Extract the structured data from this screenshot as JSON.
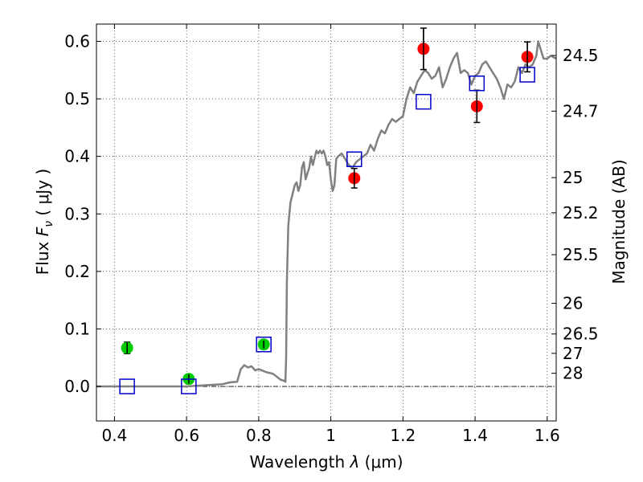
{
  "chart_data": {
    "type": "scatter",
    "xlabel": {
      "prefix": "Wavelength ",
      "symbol": "λ",
      "unit": " (μm)"
    },
    "ylabel": {
      "prefix": "Flux ",
      "symbol": "F",
      "subscript": "ν",
      "unit": " ( μJy )"
    },
    "y2label": "Magnitude (AB)",
    "xlim": [
      0.35,
      1.625
    ],
    "ylim": [
      -0.06,
      0.63
    ],
    "xticks": [
      {
        "value": 0.4,
        "label": "0.4"
      },
      {
        "value": 0.6,
        "label": "0.6"
      },
      {
        "value": 0.8,
        "label": "0.8"
      },
      {
        "value": 1.0,
        "label": "1"
      },
      {
        "value": 1.2,
        "label": "1.2"
      },
      {
        "value": 1.4,
        "label": "1.4"
      },
      {
        "value": 1.6,
        "label": "1.6"
      }
    ],
    "yticks": [
      {
        "value": 0.0,
        "label": "0.0"
      },
      {
        "value": 0.1,
        "label": "0.1"
      },
      {
        "value": 0.2,
        "label": "0.2"
      },
      {
        "value": 0.3,
        "label": "0.3"
      },
      {
        "value": 0.4,
        "label": "0.4"
      },
      {
        "value": 0.5,
        "label": "0.5"
      },
      {
        "value": 0.6,
        "label": "0.6"
      }
    ],
    "y2ticks": [
      {
        "mag": 24.5,
        "label": "24.5"
      },
      {
        "mag": 24.7,
        "label": "24.7"
      },
      {
        "mag": 25,
        "label": "25"
      },
      {
        "mag": 25.2,
        "label": "25.2"
      },
      {
        "mag": 25.5,
        "label": "25.5"
      },
      {
        "mag": 26,
        "label": "26"
      },
      {
        "mag": 26.5,
        "label": "26.5"
      },
      {
        "mag": 27,
        "label": "27"
      },
      {
        "mag": 28,
        "label": "28"
      }
    ],
    "grid": true,
    "series": [
      {
        "kind": "line",
        "color": "#808080",
        "points": [
          [
            0.35,
            0.0
          ],
          [
            0.5,
            0.0
          ],
          [
            0.6,
            0.0
          ],
          [
            0.65,
            0.002
          ],
          [
            0.7,
            0.004
          ],
          [
            0.72,
            0.007
          ],
          [
            0.74,
            0.008
          ],
          [
            0.75,
            0.03
          ],
          [
            0.76,
            0.037
          ],
          [
            0.77,
            0.033
          ],
          [
            0.78,
            0.035
          ],
          [
            0.79,
            0.028
          ],
          [
            0.8,
            0.03
          ],
          [
            0.82,
            0.025
          ],
          [
            0.84,
            0.022
          ],
          [
            0.86,
            0.012
          ],
          [
            0.87,
            0.01
          ],
          [
            0.874,
            0.008
          ],
          [
            0.876,
            0.05
          ],
          [
            0.878,
            0.18
          ],
          [
            0.882,
            0.28
          ],
          [
            0.888,
            0.32
          ],
          [
            0.892,
            0.33
          ],
          [
            0.9,
            0.35
          ],
          [
            0.905,
            0.355
          ],
          [
            0.91,
            0.34
          ],
          [
            0.915,
            0.35
          ],
          [
            0.92,
            0.38
          ],
          [
            0.925,
            0.39
          ],
          [
            0.93,
            0.36
          ],
          [
            0.935,
            0.37
          ],
          [
            0.94,
            0.38
          ],
          [
            0.945,
            0.4
          ],
          [
            0.95,
            0.385
          ],
          [
            0.96,
            0.41
          ],
          [
            0.965,
            0.405
          ],
          [
            0.97,
            0.41
          ],
          [
            0.975,
            0.405
          ],
          [
            0.98,
            0.41
          ],
          [
            0.985,
            0.4
          ],
          [
            0.99,
            0.385
          ],
          [
            0.995,
            0.39
          ],
          [
            1.0,
            0.36
          ],
          [
            1.005,
            0.34
          ],
          [
            1.01,
            0.35
          ],
          [
            1.015,
            0.395
          ],
          [
            1.02,
            0.4
          ],
          [
            1.03,
            0.405
          ],
          [
            1.04,
            0.395
          ],
          [
            1.05,
            0.385
          ],
          [
            1.06,
            0.38
          ],
          [
            1.07,
            0.39
          ],
          [
            1.08,
            0.395
          ],
          [
            1.09,
            0.4
          ],
          [
            1.1,
            0.405
          ],
          [
            1.11,
            0.42
          ],
          [
            1.12,
            0.41
          ],
          [
            1.13,
            0.43
          ],
          [
            1.14,
            0.445
          ],
          [
            1.15,
            0.44
          ],
          [
            1.16,
            0.455
          ],
          [
            1.17,
            0.465
          ],
          [
            1.18,
            0.46
          ],
          [
            1.19,
            0.465
          ],
          [
            1.2,
            0.47
          ],
          [
            1.21,
            0.5
          ],
          [
            1.22,
            0.52
          ],
          [
            1.23,
            0.51
          ],
          [
            1.24,
            0.53
          ],
          [
            1.25,
            0.54
          ],
          [
            1.26,
            0.55
          ],
          [
            1.27,
            0.545
          ],
          [
            1.28,
            0.535
          ],
          [
            1.29,
            0.54
          ],
          [
            1.3,
            0.555
          ],
          [
            1.31,
            0.52
          ],
          [
            1.32,
            0.535
          ],
          [
            1.33,
            0.555
          ],
          [
            1.34,
            0.57
          ],
          [
            1.35,
            0.58
          ],
          [
            1.36,
            0.545
          ],
          [
            1.37,
            0.55
          ],
          [
            1.38,
            0.545
          ],
          [
            1.39,
            0.525
          ],
          [
            1.4,
            0.54
          ],
          [
            1.41,
            0.545
          ],
          [
            1.42,
            0.56
          ],
          [
            1.43,
            0.565
          ],
          [
            1.44,
            0.555
          ],
          [
            1.45,
            0.545
          ],
          [
            1.46,
            0.535
          ],
          [
            1.47,
            0.52
          ],
          [
            1.48,
            0.5
          ],
          [
            1.49,
            0.525
          ],
          [
            1.5,
            0.52
          ],
          [
            1.51,
            0.53
          ],
          [
            1.52,
            0.555
          ],
          [
            1.53,
            0.545
          ],
          [
            1.54,
            0.56
          ],
          [
            1.55,
            0.555
          ],
          [
            1.56,
            0.56
          ],
          [
            1.57,
            0.575
          ],
          [
            1.575,
            0.6
          ],
          [
            1.58,
            0.59
          ],
          [
            1.59,
            0.57
          ],
          [
            1.6,
            0.57
          ],
          [
            1.61,
            0.575
          ],
          [
            1.625,
            0.57
          ]
        ]
      },
      {
        "kind": "circle",
        "color": "#ff0000",
        "points": [
          {
            "x": 1.065,
            "y": 0.362,
            "err": 0.017
          },
          {
            "x": 1.257,
            "y": 0.587,
            "err": 0.036
          },
          {
            "x": 1.405,
            "y": 0.487,
            "err": 0.028
          },
          {
            "x": 1.545,
            "y": 0.573,
            "err": 0.026
          }
        ]
      },
      {
        "kind": "circle",
        "color": "#00cc00",
        "points": [
          {
            "x": 0.435,
            "y": 0.067,
            "err": 0.01
          },
          {
            "x": 0.606,
            "y": 0.013,
            "err": 0.008
          },
          {
            "x": 0.814,
            "y": 0.073,
            "err": 0.007
          }
        ]
      },
      {
        "kind": "square",
        "color": "#0000cc",
        "points": [
          {
            "x": 0.435,
            "y": 0.0
          },
          {
            "x": 0.606,
            "y": 0.0
          },
          {
            "x": 0.814,
            "y": 0.073
          },
          {
            "x": 1.065,
            "y": 0.395
          },
          {
            "x": 1.257,
            "y": 0.495
          },
          {
            "x": 1.405,
            "y": 0.527
          },
          {
            "x": 1.545,
            "y": 0.542
          }
        ]
      }
    ]
  }
}
